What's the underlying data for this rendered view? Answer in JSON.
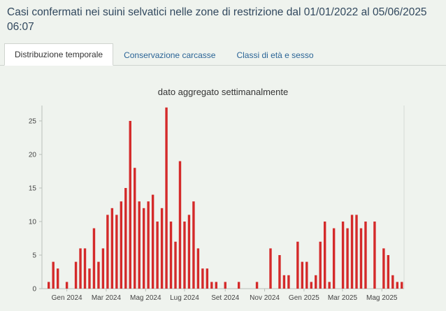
{
  "header": {
    "title": "Casi confermati nei suini selvatici nelle zone di restrizione dal 01/01/2022 al 05/06/2025 06:07"
  },
  "tabs": [
    {
      "label": "Distribuzione temporale",
      "active": true
    },
    {
      "label": "Conservazione carcasse",
      "active": false
    },
    {
      "label": "Classi di età e sesso",
      "active": false
    }
  ],
  "colors": {
    "background": "#eff3ee",
    "bar": "#d42a2a",
    "title_text": "#31485e",
    "link_text": "#2a6496",
    "axis": "#b9bfb9"
  },
  "chart_data": {
    "type": "bar",
    "title": "dato aggregato settimanalmente",
    "xlabel": "",
    "ylabel": "",
    "ylim": [
      0,
      27
    ],
    "yticks": [
      0,
      5,
      10,
      15,
      20,
      25
    ],
    "bar_color": "#d42a2a",
    "x_unit": "week",
    "grid": false,
    "legend": "none",
    "values": [
      0,
      1,
      4,
      3,
      0,
      1,
      0,
      4,
      6,
      6,
      3,
      9,
      4,
      6,
      11,
      12,
      11,
      13,
      15,
      25,
      18,
      13,
      12,
      13,
      14,
      10,
      12,
      27,
      10,
      7,
      19,
      10,
      11,
      13,
      6,
      3,
      3,
      1,
      1,
      0,
      1,
      0,
      0,
      1,
      0,
      0,
      0,
      1,
      0,
      0,
      6,
      0,
      5,
      2,
      2,
      0,
      7,
      4,
      4,
      1,
      2,
      7,
      10,
      1,
      9,
      0,
      10,
      9,
      11,
      11,
      9,
      10,
      0,
      10,
      0,
      6,
      5,
      2,
      1,
      1
    ],
    "xticks": [
      {
        "label": "Gen 2024",
        "week": 5
      },
      {
        "label": "Mar 2024",
        "week": 13.7
      },
      {
        "label": "Mag 2024",
        "week": 22.4
      },
      {
        "label": "Lug 2024",
        "week": 31
      },
      {
        "label": "Set 2024",
        "week": 40
      },
      {
        "label": "Nov 2024",
        "week": 48.7
      },
      {
        "label": "Gen 2025",
        "week": 57.4
      },
      {
        "label": "Mar 2025",
        "week": 65.9
      },
      {
        "label": "Mag 2025",
        "week": 74.6
      }
    ]
  }
}
